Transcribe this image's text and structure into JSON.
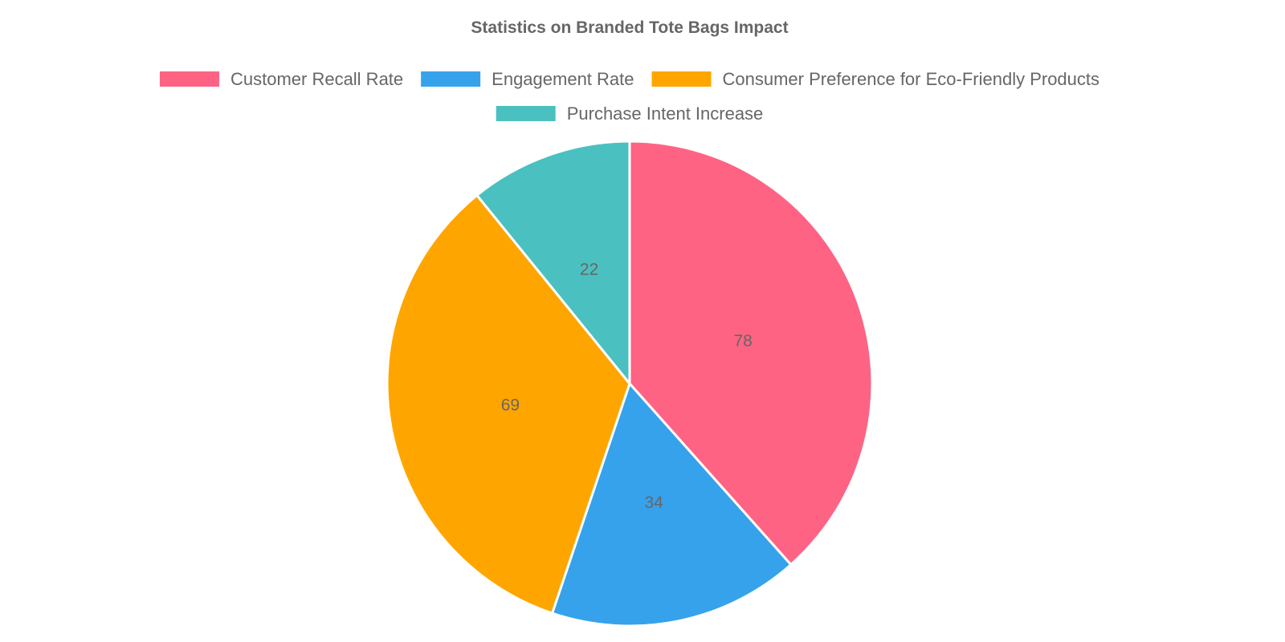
{
  "chart_data": {
    "type": "pie",
    "title": "Statistics on Branded Tote Bags Impact",
    "categories": [
      "Customer Recall Rate",
      "Engagement Rate",
      "Consumer Preference for Eco-Friendly Products",
      "Purchase Intent Increase"
    ],
    "values": [
      78,
      34,
      69,
      22
    ],
    "colors": [
      "#ff6384",
      "#36a2eb",
      "#ffa500",
      "#4bc0c0"
    ],
    "legend_position": "top",
    "data_labels": true
  }
}
